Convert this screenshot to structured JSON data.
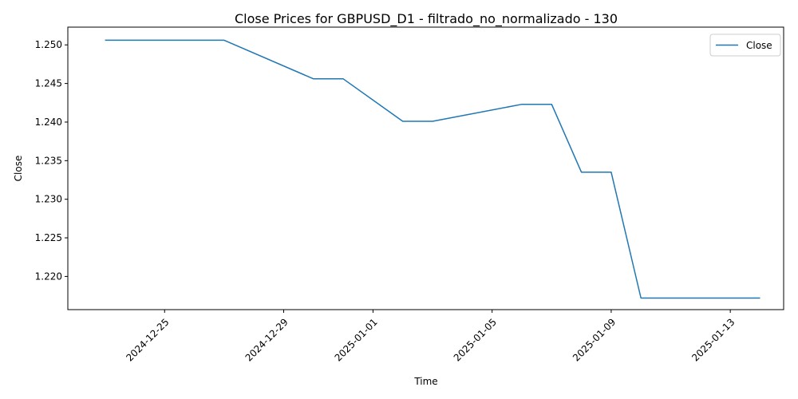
{
  "chart_data": {
    "type": "line",
    "title": "Close Prices for GBPUSD_D1 - filtrado_no_normalizado - 130",
    "xlabel": "Time",
    "ylabel": "Close",
    "x_tick_labels": [
      "2024-12-25",
      "2024-12-29",
      "2025-01-01",
      "2025-01-05",
      "2025-01-09",
      "2025-01-13"
    ],
    "y_tick_labels": [
      "1.220",
      "1.225",
      "1.230",
      "1.235",
      "1.240",
      "1.245",
      "1.250"
    ],
    "ylim": [
      1.2157,
      1.2523
    ],
    "xlim": [
      "2024-12-21T18:00",
      "2025-01-14T19:00"
    ],
    "grid": false,
    "legend_position": "upper right",
    "series": [
      {
        "name": "Close",
        "color": "#1f77b4",
        "points": [
          {
            "x": "2024-12-23",
            "y": 1.2506
          },
          {
            "x": "2024-12-24",
            "y": 1.2506
          },
          {
            "x": "2024-12-25",
            "y": 1.2506
          },
          {
            "x": "2024-12-26",
            "y": 1.2506
          },
          {
            "x": "2024-12-27",
            "y": 1.2506
          },
          {
            "x": "2024-12-30",
            "y": 1.2456
          },
          {
            "x": "2024-12-31",
            "y": 1.2456
          },
          {
            "x": "2025-01-02",
            "y": 1.2401
          },
          {
            "x": "2025-01-03",
            "y": 1.2401
          },
          {
            "x": "2025-01-06",
            "y": 1.2423
          },
          {
            "x": "2025-01-07",
            "y": 1.2423
          },
          {
            "x": "2025-01-08",
            "y": 1.2335
          },
          {
            "x": "2025-01-09",
            "y": 1.2335
          },
          {
            "x": "2025-01-10",
            "y": 1.2172
          },
          {
            "x": "2025-01-13",
            "y": 1.2172
          },
          {
            "x": "2025-01-14",
            "y": 1.2172
          }
        ]
      }
    ]
  }
}
